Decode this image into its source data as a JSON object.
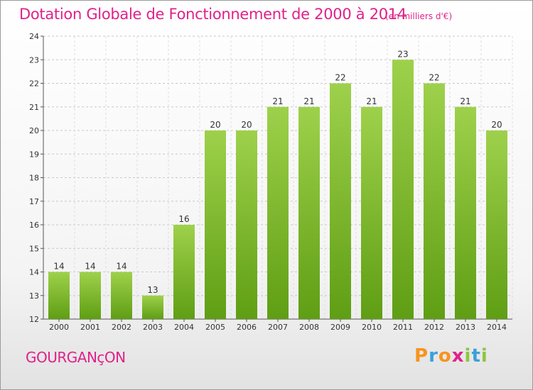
{
  "header": {
    "title": "Dotation Globale de Fonctionnement de 2000 à 2014",
    "unit": "(en milliers d'€)"
  },
  "footer": {
    "commune": "GOURGANçON",
    "logo_letters": [
      "P",
      "r",
      "o",
      "x",
      "i",
      "t",
      "i"
    ]
  },
  "colors": {
    "title": "#e0218a",
    "bar_top": "#9ed14b",
    "bar_bottom": "#5f9e14",
    "grid": "#c8c8c8",
    "logo": [
      "#f7941d",
      "#3aa0db",
      "#f7941d",
      "#e0218a",
      "#8cc63f",
      "#3aa0db",
      "#8cc63f"
    ]
  },
  "chart_data": {
    "type": "bar",
    "title": "Dotation Globale de Fonctionnement de 2000 à 2014",
    "subtitle": "(en milliers d'€)",
    "xlabel": "",
    "ylabel": "",
    "categories": [
      "2000",
      "2001",
      "2002",
      "2003",
      "2004",
      "2005",
      "2006",
      "2007",
      "2008",
      "2009",
      "2010",
      "2011",
      "2012",
      "2013",
      "2014"
    ],
    "values": [
      14,
      14,
      14,
      13,
      16,
      20,
      20,
      21,
      21,
      22,
      21,
      23,
      22,
      21,
      20
    ],
    "data_labels": [
      "14",
      "14",
      "14",
      "13",
      "16",
      "20",
      "20",
      "21",
      "21",
      "22",
      "21",
      "23",
      "22",
      "21",
      "20"
    ],
    "ylim": [
      12,
      24
    ],
    "yticks": [
      "12",
      "13",
      "14",
      "15",
      "16",
      "17",
      "18",
      "19",
      "20",
      "21",
      "22",
      "23",
      "24"
    ],
    "grid": "horizontal dashed",
    "legend": "none"
  }
}
